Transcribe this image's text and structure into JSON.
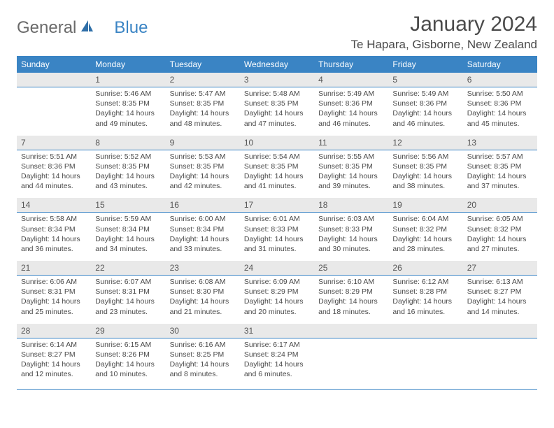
{
  "brand": {
    "part1": "General",
    "part2": "Blue"
  },
  "title": {
    "month": "January 2024",
    "location": "Te Hapara, Gisborne, New Zealand"
  },
  "colors": {
    "accent": "#3a84c4",
    "header_bg": "#3a84c4",
    "daynum_bg": "#e9e9e9",
    "text": "#4a4a4a",
    "page_bg": "#ffffff"
  },
  "font": {
    "title_size": 30,
    "location_size": 17,
    "header_size": 12,
    "daynum_size": 12,
    "cell_size": 10.5
  },
  "weekdays": [
    "Sunday",
    "Monday",
    "Tuesday",
    "Wednesday",
    "Thursday",
    "Friday",
    "Saturday"
  ],
  "weeks": [
    [
      null,
      {
        "n": "1",
        "sunrise": "Sunrise: 5:46 AM",
        "sunset": "Sunset: 8:35 PM",
        "daylight": "Daylight: 14 hours and 49 minutes."
      },
      {
        "n": "2",
        "sunrise": "Sunrise: 5:47 AM",
        "sunset": "Sunset: 8:35 PM",
        "daylight": "Daylight: 14 hours and 48 minutes."
      },
      {
        "n": "3",
        "sunrise": "Sunrise: 5:48 AM",
        "sunset": "Sunset: 8:35 PM",
        "daylight": "Daylight: 14 hours and 47 minutes."
      },
      {
        "n": "4",
        "sunrise": "Sunrise: 5:49 AM",
        "sunset": "Sunset: 8:36 PM",
        "daylight": "Daylight: 14 hours and 46 minutes."
      },
      {
        "n": "5",
        "sunrise": "Sunrise: 5:49 AM",
        "sunset": "Sunset: 8:36 PM",
        "daylight": "Daylight: 14 hours and 46 minutes."
      },
      {
        "n": "6",
        "sunrise": "Sunrise: 5:50 AM",
        "sunset": "Sunset: 8:36 PM",
        "daylight": "Daylight: 14 hours and 45 minutes."
      }
    ],
    [
      {
        "n": "7",
        "sunrise": "Sunrise: 5:51 AM",
        "sunset": "Sunset: 8:36 PM",
        "daylight": "Daylight: 14 hours and 44 minutes."
      },
      {
        "n": "8",
        "sunrise": "Sunrise: 5:52 AM",
        "sunset": "Sunset: 8:35 PM",
        "daylight": "Daylight: 14 hours and 43 minutes."
      },
      {
        "n": "9",
        "sunrise": "Sunrise: 5:53 AM",
        "sunset": "Sunset: 8:35 PM",
        "daylight": "Daylight: 14 hours and 42 minutes."
      },
      {
        "n": "10",
        "sunrise": "Sunrise: 5:54 AM",
        "sunset": "Sunset: 8:35 PM",
        "daylight": "Daylight: 14 hours and 41 minutes."
      },
      {
        "n": "11",
        "sunrise": "Sunrise: 5:55 AM",
        "sunset": "Sunset: 8:35 PM",
        "daylight": "Daylight: 14 hours and 39 minutes."
      },
      {
        "n": "12",
        "sunrise": "Sunrise: 5:56 AM",
        "sunset": "Sunset: 8:35 PM",
        "daylight": "Daylight: 14 hours and 38 minutes."
      },
      {
        "n": "13",
        "sunrise": "Sunrise: 5:57 AM",
        "sunset": "Sunset: 8:35 PM",
        "daylight": "Daylight: 14 hours and 37 minutes."
      }
    ],
    [
      {
        "n": "14",
        "sunrise": "Sunrise: 5:58 AM",
        "sunset": "Sunset: 8:34 PM",
        "daylight": "Daylight: 14 hours and 36 minutes."
      },
      {
        "n": "15",
        "sunrise": "Sunrise: 5:59 AM",
        "sunset": "Sunset: 8:34 PM",
        "daylight": "Daylight: 14 hours and 34 minutes."
      },
      {
        "n": "16",
        "sunrise": "Sunrise: 6:00 AM",
        "sunset": "Sunset: 8:34 PM",
        "daylight": "Daylight: 14 hours and 33 minutes."
      },
      {
        "n": "17",
        "sunrise": "Sunrise: 6:01 AM",
        "sunset": "Sunset: 8:33 PM",
        "daylight": "Daylight: 14 hours and 31 minutes."
      },
      {
        "n": "18",
        "sunrise": "Sunrise: 6:03 AM",
        "sunset": "Sunset: 8:33 PM",
        "daylight": "Daylight: 14 hours and 30 minutes."
      },
      {
        "n": "19",
        "sunrise": "Sunrise: 6:04 AM",
        "sunset": "Sunset: 8:32 PM",
        "daylight": "Daylight: 14 hours and 28 minutes."
      },
      {
        "n": "20",
        "sunrise": "Sunrise: 6:05 AM",
        "sunset": "Sunset: 8:32 PM",
        "daylight": "Daylight: 14 hours and 27 minutes."
      }
    ],
    [
      {
        "n": "21",
        "sunrise": "Sunrise: 6:06 AM",
        "sunset": "Sunset: 8:31 PM",
        "daylight": "Daylight: 14 hours and 25 minutes."
      },
      {
        "n": "22",
        "sunrise": "Sunrise: 6:07 AM",
        "sunset": "Sunset: 8:31 PM",
        "daylight": "Daylight: 14 hours and 23 minutes."
      },
      {
        "n": "23",
        "sunrise": "Sunrise: 6:08 AM",
        "sunset": "Sunset: 8:30 PM",
        "daylight": "Daylight: 14 hours and 21 minutes."
      },
      {
        "n": "24",
        "sunrise": "Sunrise: 6:09 AM",
        "sunset": "Sunset: 8:29 PM",
        "daylight": "Daylight: 14 hours and 20 minutes."
      },
      {
        "n": "25",
        "sunrise": "Sunrise: 6:10 AM",
        "sunset": "Sunset: 8:29 PM",
        "daylight": "Daylight: 14 hours and 18 minutes."
      },
      {
        "n": "26",
        "sunrise": "Sunrise: 6:12 AM",
        "sunset": "Sunset: 8:28 PM",
        "daylight": "Daylight: 14 hours and 16 minutes."
      },
      {
        "n": "27",
        "sunrise": "Sunrise: 6:13 AM",
        "sunset": "Sunset: 8:27 PM",
        "daylight": "Daylight: 14 hours and 14 minutes."
      }
    ],
    [
      {
        "n": "28",
        "sunrise": "Sunrise: 6:14 AM",
        "sunset": "Sunset: 8:27 PM",
        "daylight": "Daylight: 14 hours and 12 minutes."
      },
      {
        "n": "29",
        "sunrise": "Sunrise: 6:15 AM",
        "sunset": "Sunset: 8:26 PM",
        "daylight": "Daylight: 14 hours and 10 minutes."
      },
      {
        "n": "30",
        "sunrise": "Sunrise: 6:16 AM",
        "sunset": "Sunset: 8:25 PM",
        "daylight": "Daylight: 14 hours and 8 minutes."
      },
      {
        "n": "31",
        "sunrise": "Sunrise: 6:17 AM",
        "sunset": "Sunset: 8:24 PM",
        "daylight": "Daylight: 14 hours and 6 minutes."
      },
      null,
      null,
      null
    ]
  ]
}
